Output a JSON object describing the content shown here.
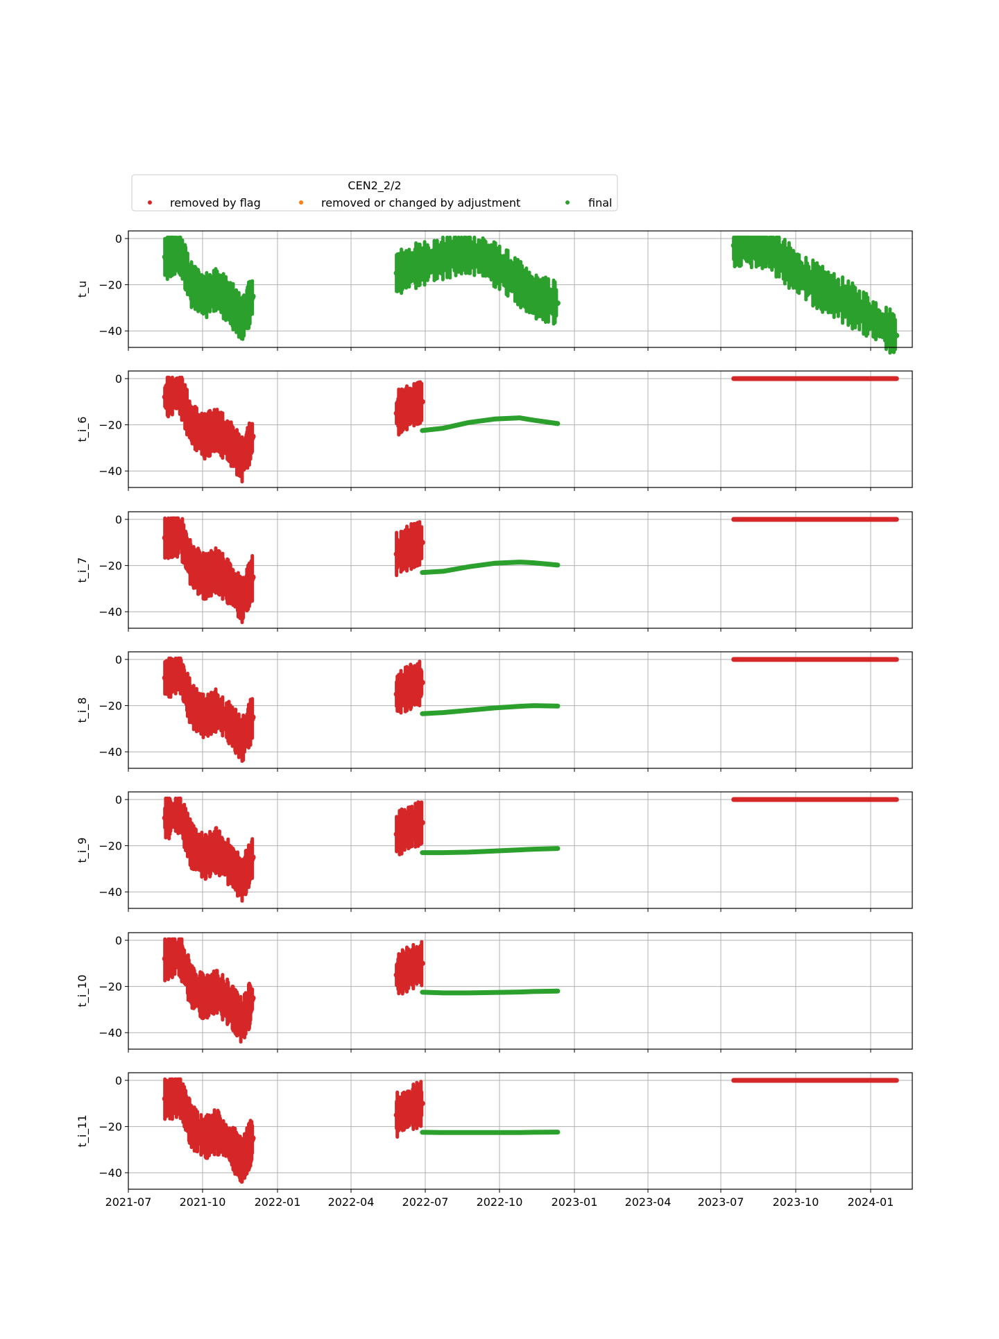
{
  "chart_data": {
    "type": "scatter",
    "legend": {
      "title": "CEN2_2/2",
      "placement": "top-left, above plots",
      "entries": [
        {
          "label": "removed by flag",
          "color": "#d62728"
        },
        {
          "label": "removed or changed by adjustment",
          "color": "#ff7f0e"
        },
        {
          "label": "final",
          "color": "#2ca02c"
        }
      ]
    },
    "x_ticks": [
      "2021-07",
      "2021-10",
      "2022-01",
      "2022-04",
      "2022-07",
      "2022-10",
      "2023-01",
      "2023-04",
      "2023-07",
      "2023-10",
      "2024-01"
    ],
    "xlim": [
      "2021-07-01",
      "2024-01-31"
    ],
    "grid": true,
    "panels": [
      {
        "ylabel": "t_u",
        "ylim": [
          -50,
          3
        ],
        "yticks": [
          "0",
          "−20",
          "−40"
        ],
        "series": [
          {
            "name": "final",
            "style": "noisy",
            "segments": [
              {
                "x": [
                  "2021-08-14",
                  "2021-09-01",
                  "2021-09-15",
                  "2021-10-01",
                  "2021-10-15",
                  "2021-11-01",
                  "2021-11-15",
                  "2021-11-28"
                ],
                "y": [
                  -8,
                  -6,
                  -20,
                  -25,
                  -22,
                  -28,
                  -35,
                  -25
                ]
              },
              {
                "x": [
                  "2022-05-20",
                  "2022-06-10",
                  "2022-07-01",
                  "2022-08-01",
                  "2022-09-01",
                  "2022-10-01",
                  "2022-11-01",
                  "2022-11-30"
                ],
                "y": [
                  -15,
                  -12,
                  -10,
                  -6,
                  -8,
                  -15,
                  -25,
                  -28
                ]
              },
              {
                "x": [
                  "2023-06-30",
                  "2023-07-20",
                  "2023-08-15",
                  "2023-09-15",
                  "2023-10-15",
                  "2023-11-15",
                  "2023-12-15",
                  "2024-01-12"
                ],
                "y": [
                  -3,
                  -3,
                  -5,
                  -15,
                  -22,
                  -28,
                  -35,
                  -42
                ]
              }
            ]
          }
        ]
      },
      {
        "ylabel": "t_i_6",
        "ylim": [
          -48,
          2
        ],
        "yticks": [
          "0",
          "−20",
          "−40"
        ],
        "series": [
          {
            "name": "removed by flag",
            "style": "noisy",
            "segments": [
              {
                "x": [
                  "2021-08-14",
                  "2021-09-01",
                  "2021-09-15",
                  "2021-10-01",
                  "2021-10-15",
                  "2021-11-01",
                  "2021-11-15",
                  "2021-11-28"
                ],
                "y": [
                  -8,
                  -6,
                  -20,
                  -25,
                  -22,
                  -28,
                  -35,
                  -25
                ]
              },
              {
                "x": [
                  "2022-05-20",
                  "2022-06-05",
                  "2022-06-20"
                ],
                "y": [
                  -15,
                  -12,
                  -10
                ]
              },
              {
                "x": [
                  "2023-06-30",
                  "2024-01-12"
                ],
                "y": [
                  0,
                  0
                ],
                "flat": true
              }
            ]
          },
          {
            "name": "final",
            "style": "smooth",
            "segments": [
              {
                "x": [
                  "2022-06-20",
                  "2022-07-15",
                  "2022-08-15",
                  "2022-09-15",
                  "2022-10-15",
                  "2022-11-01",
                  "2022-11-30"
                ],
                "y": [
                  -22.5,
                  -21.5,
                  -19,
                  -17.5,
                  -17,
                  -18,
                  -19.5
                ]
              }
            ]
          }
        ]
      },
      {
        "ylabel": "t_i_7",
        "ylim": [
          -48,
          2
        ],
        "yticks": [
          "0",
          "−20",
          "−40"
        ],
        "series": [
          {
            "name": "removed by flag",
            "style": "noisy",
            "segments": [
              {
                "x": [
                  "2021-08-14",
                  "2021-09-01",
                  "2021-09-15",
                  "2021-10-01",
                  "2021-10-15",
                  "2021-11-01",
                  "2021-11-15",
                  "2021-11-28"
                ],
                "y": [
                  -8,
                  -6,
                  -20,
                  -25,
                  -22,
                  -28,
                  -35,
                  -25
                ]
              },
              {
                "x": [
                  "2022-05-20",
                  "2022-06-05",
                  "2022-06-20"
                ],
                "y": [
                  -15,
                  -12,
                  -10
                ]
              },
              {
                "x": [
                  "2023-06-30",
                  "2024-01-12"
                ],
                "y": [
                  0,
                  0
                ],
                "flat": true
              }
            ]
          },
          {
            "name": "final",
            "style": "smooth",
            "segments": [
              {
                "x": [
                  "2022-06-20",
                  "2022-07-15",
                  "2022-08-15",
                  "2022-09-15",
                  "2022-10-15",
                  "2022-11-01",
                  "2022-11-30"
                ],
                "y": [
                  -23,
                  -22.5,
                  -20.5,
                  -19,
                  -18.5,
                  -18.8,
                  -19.8
                ]
              }
            ]
          }
        ]
      },
      {
        "ylabel": "t_i_8",
        "ylim": [
          -48,
          2
        ],
        "yticks": [
          "0",
          "−20",
          "−40"
        ],
        "series": [
          {
            "name": "removed by flag",
            "style": "noisy",
            "segments": [
              {
                "x": [
                  "2021-08-14",
                  "2021-09-01",
                  "2021-09-15",
                  "2021-10-01",
                  "2021-10-15",
                  "2021-11-01",
                  "2021-11-15",
                  "2021-11-28"
                ],
                "y": [
                  -8,
                  -6,
                  -20,
                  -25,
                  -22,
                  -28,
                  -35,
                  -25
                ]
              },
              {
                "x": [
                  "2022-05-20",
                  "2022-06-05",
                  "2022-06-20"
                ],
                "y": [
                  -15,
                  -12,
                  -10
                ]
              },
              {
                "x": [
                  "2023-06-30",
                  "2024-01-12"
                ],
                "y": [
                  0,
                  0
                ],
                "flat": true
              }
            ]
          },
          {
            "name": "final",
            "style": "smooth",
            "segments": [
              {
                "x": [
                  "2022-06-20",
                  "2022-07-15",
                  "2022-08-15",
                  "2022-09-15",
                  "2022-10-15",
                  "2022-11-01",
                  "2022-11-30"
                ],
                "y": [
                  -23.5,
                  -23,
                  -22,
                  -21,
                  -20.3,
                  -20,
                  -20.2
                ]
              }
            ]
          }
        ]
      },
      {
        "ylabel": "t_i_9",
        "ylim": [
          -48,
          2
        ],
        "yticks": [
          "0",
          "−20",
          "−40"
        ],
        "series": [
          {
            "name": "removed by flag",
            "style": "noisy",
            "segments": [
              {
                "x": [
                  "2021-08-14",
                  "2021-09-01",
                  "2021-09-15",
                  "2021-10-01",
                  "2021-10-15",
                  "2021-11-01",
                  "2021-11-15",
                  "2021-11-28"
                ],
                "y": [
                  -8,
                  -6,
                  -20,
                  -25,
                  -22,
                  -28,
                  -35,
                  -25
                ]
              },
              {
                "x": [
                  "2022-05-20",
                  "2022-06-05",
                  "2022-06-20"
                ],
                "y": [
                  -15,
                  -12,
                  -10
                ]
              },
              {
                "x": [
                  "2023-06-30",
                  "2024-01-12"
                ],
                "y": [
                  0,
                  0
                ],
                "flat": true
              }
            ]
          },
          {
            "name": "final",
            "style": "smooth",
            "segments": [
              {
                "x": [
                  "2022-06-20",
                  "2022-07-15",
                  "2022-08-15",
                  "2022-09-15",
                  "2022-10-15",
                  "2022-11-01",
                  "2022-11-30"
                ],
                "y": [
                  -23,
                  -23,
                  -22.8,
                  -22.3,
                  -21.8,
                  -21.5,
                  -21.2
                ]
              }
            ]
          }
        ]
      },
      {
        "ylabel": "t_i_10",
        "ylim": [
          -48,
          2
        ],
        "yticks": [
          "0",
          "−20",
          "−40"
        ],
        "series": [
          {
            "name": "removed by flag",
            "style": "noisy",
            "segments": [
              {
                "x": [
                  "2021-08-14",
                  "2021-09-01",
                  "2021-09-15",
                  "2021-10-01",
                  "2021-10-15",
                  "2021-11-01",
                  "2021-11-15",
                  "2021-11-28"
                ],
                "y": [
                  -8,
                  -6,
                  -20,
                  -25,
                  -22,
                  -28,
                  -35,
                  -25
                ]
              },
              {
                "x": [
                  "2022-05-20",
                  "2022-06-05",
                  "2022-06-20"
                ],
                "y": [
                  -15,
                  -12,
                  -10
                ]
              }
            ]
          },
          {
            "name": "final",
            "style": "smooth",
            "segments": [
              {
                "x": [
                  "2022-06-20",
                  "2022-07-15",
                  "2022-08-15",
                  "2022-09-15",
                  "2022-10-15",
                  "2022-11-01",
                  "2022-11-30"
                ],
                "y": [
                  -22.5,
                  -22.8,
                  -22.8,
                  -22.6,
                  -22.4,
                  -22.2,
                  -22
                ]
              }
            ]
          }
        ]
      },
      {
        "ylabel": "t_i_11",
        "ylim": [
          -48,
          2
        ],
        "yticks": [
          "0",
          "−20",
          "−40"
        ],
        "series": [
          {
            "name": "removed by flag",
            "style": "noisy",
            "segments": [
              {
                "x": [
                  "2021-08-14",
                  "2021-09-01",
                  "2021-09-15",
                  "2021-10-01",
                  "2021-10-15",
                  "2021-11-01",
                  "2021-11-15",
                  "2021-11-28"
                ],
                "y": [
                  -8,
                  -6,
                  -20,
                  -25,
                  -22,
                  -28,
                  -35,
                  -25
                ]
              },
              {
                "x": [
                  "2022-05-20",
                  "2022-06-05",
                  "2022-06-20"
                ],
                "y": [
                  -15,
                  -12,
                  -10
                ]
              },
              {
                "x": [
                  "2023-06-30",
                  "2024-01-12"
                ],
                "y": [
                  0,
                  0
                ],
                "flat": true
              }
            ]
          },
          {
            "name": "final",
            "style": "smooth",
            "segments": [
              {
                "x": [
                  "2022-06-20",
                  "2022-07-15",
                  "2022-08-15",
                  "2022-09-15",
                  "2022-10-15",
                  "2022-11-01",
                  "2022-11-30"
                ],
                "y": [
                  -22.5,
                  -22.6,
                  -22.6,
                  -22.6,
                  -22.6,
                  -22.5,
                  -22.4
                ]
              }
            ]
          }
        ]
      }
    ]
  }
}
